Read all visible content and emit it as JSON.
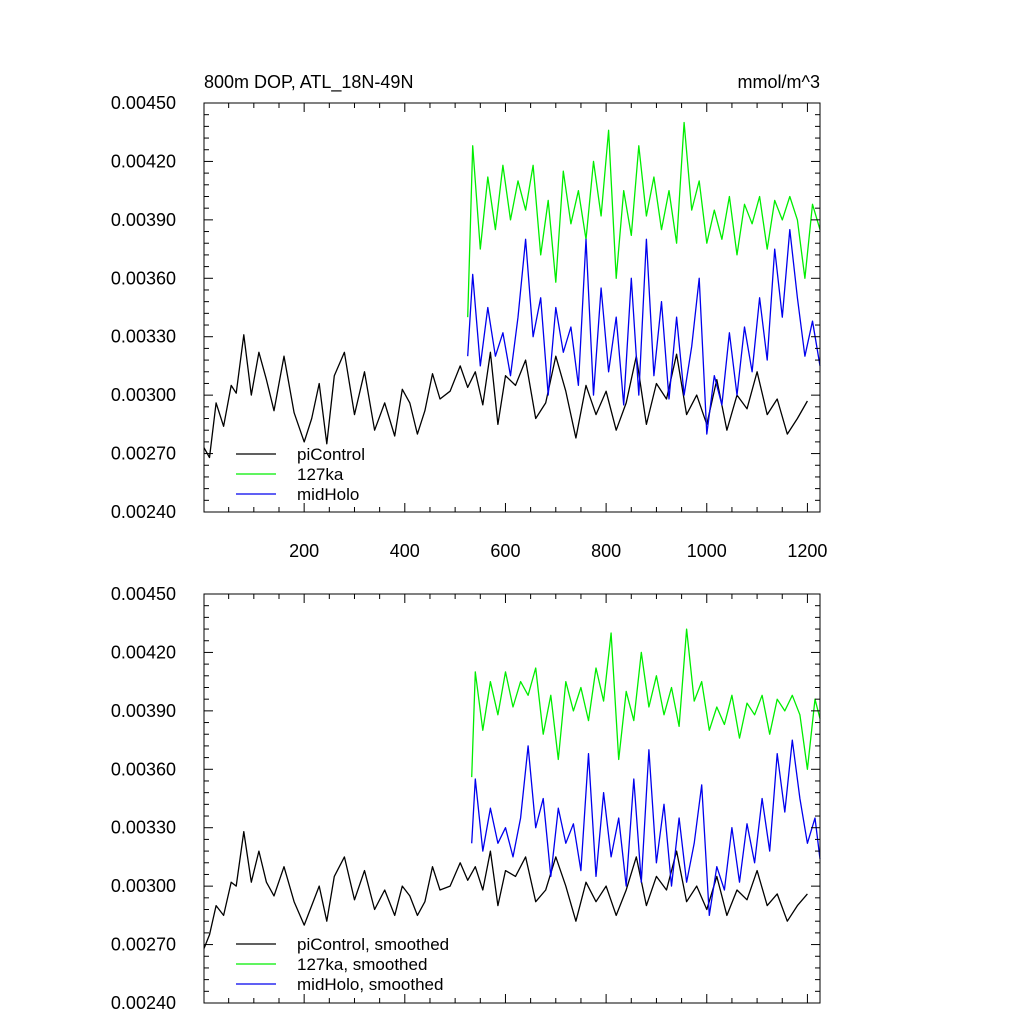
{
  "colors": {
    "piControl": "#000000",
    "127ka": "#00ee00",
    "midHolo": "#0000ee"
  },
  "chart_data": [
    {
      "type": "line",
      "title": "800m DOP, ATL_18N-49N",
      "units": "mmol/m^3",
      "xlabel": "",
      "ylabel": "",
      "xlim": [
        1,
        1225
      ],
      "ylim": [
        0.0024,
        0.0045
      ],
      "x_ticks": [
        200,
        400,
        600,
        800,
        1000,
        1200
      ],
      "x_tick_labels": [
        "200",
        "400",
        "600",
        "800",
        "1000",
        "1200"
      ],
      "y_ticks": [
        0.0024,
        0.0027,
        0.003,
        0.0033,
        0.0036,
        0.0039,
        0.0042,
        0.0045
      ],
      "y_tick_labels": [
        "0.00240",
        "0.00270",
        "0.00300",
        "0.00330",
        "0.00360",
        "0.00390",
        "0.00420",
        "0.00450"
      ],
      "grid": false,
      "legend_position": "bottom-left",
      "series": [
        {
          "name": "piControl",
          "color": "#000000",
          "x": [
            1,
            12,
            25,
            40,
            55,
            65,
            80,
            95,
            110,
            125,
            140,
            160,
            180,
            200,
            215,
            230,
            245,
            260,
            280,
            300,
            320,
            340,
            360,
            380,
            395,
            410,
            425,
            440,
            455,
            470,
            490,
            510,
            525,
            540,
            555,
            570,
            585,
            600,
            620,
            640,
            660,
            680,
            700,
            720,
            740,
            760,
            780,
            800,
            820,
            840,
            860,
            880,
            900,
            920,
            940,
            960,
            980,
            1000,
            1020,
            1040,
            1060,
            1080,
            1100,
            1120,
            1140,
            1160,
            1180,
            1200
          ],
          "y": [
            0.00273,
            0.00268,
            0.00296,
            0.00284,
            0.00305,
            0.00301,
            0.00331,
            0.003,
            0.00322,
            0.00308,
            0.00292,
            0.0032,
            0.00291,
            0.00276,
            0.00288,
            0.00306,
            0.00275,
            0.0031,
            0.00322,
            0.0029,
            0.00312,
            0.00282,
            0.00296,
            0.00279,
            0.00303,
            0.00296,
            0.0028,
            0.00292,
            0.00311,
            0.00298,
            0.00302,
            0.00315,
            0.00304,
            0.00312,
            0.00295,
            0.00322,
            0.00285,
            0.0031,
            0.00305,
            0.00318,
            0.00288,
            0.00296,
            0.0032,
            0.00302,
            0.00278,
            0.00305,
            0.0029,
            0.00302,
            0.00282,
            0.00296,
            0.0032,
            0.00285,
            0.00306,
            0.00298,
            0.00321,
            0.0029,
            0.003,
            0.00285,
            0.00308,
            0.00282,
            0.003,
            0.00293,
            0.00312,
            0.0029,
            0.00298,
            0.0028,
            0.00288,
            0.00297
          ]
        },
        {
          "name": "127ka",
          "color": "#00ee00",
          "x": [
            525,
            535,
            550,
            565,
            580,
            595,
            610,
            625,
            640,
            655,
            670,
            685,
            700,
            715,
            730,
            745,
            760,
            775,
            790,
            805,
            820,
            835,
            850,
            865,
            880,
            895,
            910,
            925,
            940,
            955,
            970,
            985,
            1000,
            1015,
            1030,
            1045,
            1060,
            1075,
            1090,
            1105,
            1120,
            1135,
            1150,
            1165,
            1180,
            1195,
            1210,
            1225
          ],
          "y": [
            0.0034,
            0.00428,
            0.00375,
            0.00412,
            0.00385,
            0.00418,
            0.0039,
            0.0041,
            0.00395,
            0.00418,
            0.00372,
            0.004,
            0.00358,
            0.00415,
            0.00388,
            0.00405,
            0.0038,
            0.0042,
            0.00392,
            0.00436,
            0.0036,
            0.00405,
            0.00382,
            0.00428,
            0.00392,
            0.00412,
            0.00385,
            0.00405,
            0.00378,
            0.0044,
            0.00395,
            0.0041,
            0.00378,
            0.00395,
            0.0038,
            0.00402,
            0.00372,
            0.00398,
            0.00388,
            0.00402,
            0.00375,
            0.004,
            0.0039,
            0.00402,
            0.0039,
            0.0036,
            0.00398,
            0.00385
          ]
        },
        {
          "name": "midHolo",
          "color": "#0000ee",
          "x": [
            525,
            535,
            550,
            565,
            580,
            595,
            610,
            625,
            640,
            655,
            670,
            685,
            700,
            715,
            730,
            745,
            760,
            775,
            790,
            805,
            820,
            835,
            850,
            865,
            880,
            895,
            910,
            925,
            940,
            955,
            970,
            985,
            1000,
            1015,
            1030,
            1045,
            1060,
            1075,
            1090,
            1105,
            1120,
            1135,
            1150,
            1165,
            1180,
            1195,
            1210,
            1225
          ],
          "y": [
            0.0032,
            0.00362,
            0.00315,
            0.00345,
            0.0032,
            0.00332,
            0.0031,
            0.0034,
            0.0038,
            0.0033,
            0.0035,
            0.003,
            0.00345,
            0.00322,
            0.00335,
            0.00305,
            0.0038,
            0.003,
            0.00355,
            0.00312,
            0.0034,
            0.00295,
            0.0036,
            0.003,
            0.0038,
            0.0031,
            0.00348,
            0.00298,
            0.0034,
            0.003,
            0.00325,
            0.0036,
            0.0028,
            0.0031,
            0.00295,
            0.00332,
            0.003,
            0.00335,
            0.00312,
            0.0035,
            0.00318,
            0.00375,
            0.0034,
            0.00385,
            0.0035,
            0.0032,
            0.00338,
            0.00315
          ]
        }
      ],
      "legend": [
        {
          "label": "piControl",
          "color": "#000000"
        },
        {
          "label": "127ka",
          "color": "#00ee00"
        },
        {
          "label": "midHolo",
          "color": "#0000ee"
        }
      ]
    },
    {
      "type": "line",
      "title": "",
      "units": "",
      "xlabel": "",
      "ylabel": "",
      "xlim": [
        1,
        1225
      ],
      "ylim": [
        0.0024,
        0.0045
      ],
      "x_ticks": [
        200,
        400,
        600,
        800,
        1000,
        1200
      ],
      "x_tick_labels": [],
      "y_ticks": [
        0.0024,
        0.0027,
        0.003,
        0.0033,
        0.0036,
        0.0039,
        0.0042,
        0.0045
      ],
      "y_tick_labels": [
        "0.00240",
        "0.00270",
        "0.00300",
        "0.00330",
        "0.00360",
        "0.00390",
        "0.00420",
        "0.00450"
      ],
      "grid": false,
      "legend_position": "bottom-left",
      "series": [
        {
          "name": "piControl, smoothed",
          "color": "#000000",
          "x": [
            1,
            12,
            25,
            40,
            55,
            65,
            80,
            95,
            110,
            125,
            140,
            160,
            180,
            200,
            215,
            230,
            245,
            260,
            280,
            300,
            320,
            340,
            360,
            380,
            395,
            410,
            425,
            440,
            455,
            470,
            490,
            510,
            525,
            540,
            555,
            570,
            585,
            600,
            620,
            640,
            660,
            680,
            700,
            720,
            740,
            760,
            780,
            800,
            820,
            840,
            860,
            880,
            900,
            920,
            940,
            960,
            980,
            1000,
            1020,
            1040,
            1060,
            1080,
            1100,
            1120,
            1140,
            1160,
            1180,
            1200
          ],
          "y": [
            0.00268,
            0.00275,
            0.0029,
            0.00285,
            0.00302,
            0.003,
            0.00328,
            0.00302,
            0.00318,
            0.00302,
            0.00295,
            0.0031,
            0.00292,
            0.0028,
            0.0029,
            0.003,
            0.00282,
            0.00305,
            0.00315,
            0.00293,
            0.00308,
            0.00288,
            0.00298,
            0.00285,
            0.003,
            0.00295,
            0.00285,
            0.00292,
            0.0031,
            0.00298,
            0.003,
            0.00312,
            0.00303,
            0.0031,
            0.00298,
            0.00318,
            0.0029,
            0.00308,
            0.00305,
            0.00315,
            0.00292,
            0.00298,
            0.00315,
            0.003,
            0.00282,
            0.00302,
            0.00292,
            0.003,
            0.00285,
            0.00298,
            0.00315,
            0.0029,
            0.00305,
            0.00298,
            0.00318,
            0.00292,
            0.003,
            0.00288,
            0.00305,
            0.00285,
            0.00298,
            0.00293,
            0.00308,
            0.0029,
            0.00296,
            0.00282,
            0.0029,
            0.00296
          ]
        },
        {
          "name": "127ka, smoothed",
          "color": "#00ee00",
          "x": [
            533,
            540,
            555,
            570,
            585,
            600,
            615,
            630,
            645,
            660,
            675,
            690,
            705,
            720,
            735,
            750,
            765,
            780,
            795,
            810,
            825,
            840,
            855,
            870,
            885,
            900,
            915,
            930,
            945,
            960,
            975,
            990,
            1005,
            1020,
            1035,
            1050,
            1065,
            1080,
            1095,
            1110,
            1125,
            1140,
            1155,
            1170,
            1185,
            1200,
            1215,
            1225
          ],
          "y": [
            0.00356,
            0.0041,
            0.0038,
            0.00405,
            0.00388,
            0.0041,
            0.00392,
            0.00405,
            0.00398,
            0.00412,
            0.00378,
            0.00398,
            0.00365,
            0.00405,
            0.0039,
            0.00402,
            0.00385,
            0.00412,
            0.00395,
            0.0043,
            0.00365,
            0.004,
            0.00385,
            0.0042,
            0.00392,
            0.00408,
            0.00388,
            0.00402,
            0.00382,
            0.00432,
            0.00395,
            0.00405,
            0.0038,
            0.00392,
            0.00383,
            0.00398,
            0.00376,
            0.00394,
            0.00388,
            0.00398,
            0.00378,
            0.00396,
            0.0039,
            0.00398,
            0.00388,
            0.0036,
            0.00396,
            0.00386
          ]
        },
        {
          "name": "midHolo, smoothed",
          "color": "#0000ee",
          "x": [
            533,
            540,
            555,
            570,
            585,
            600,
            615,
            630,
            645,
            660,
            675,
            690,
            705,
            720,
            735,
            750,
            765,
            780,
            795,
            810,
            825,
            840,
            855,
            870,
            885,
            900,
            915,
            930,
            945,
            960,
            975,
            990,
            1005,
            1020,
            1035,
            1050,
            1065,
            1080,
            1095,
            1110,
            1125,
            1140,
            1155,
            1170,
            1185,
            1200,
            1215,
            1225
          ],
          "y": [
            0.00322,
            0.00355,
            0.00318,
            0.0034,
            0.00322,
            0.0033,
            0.00315,
            0.00335,
            0.00372,
            0.0033,
            0.00345,
            0.00305,
            0.0034,
            0.00322,
            0.00332,
            0.00308,
            0.00368,
            0.00305,
            0.00348,
            0.00315,
            0.00335,
            0.003,
            0.00355,
            0.00302,
            0.0037,
            0.00312,
            0.00342,
            0.003,
            0.00335,
            0.00302,
            0.00322,
            0.00352,
            0.00285,
            0.0031,
            0.00298,
            0.0033,
            0.00302,
            0.00332,
            0.00312,
            0.00345,
            0.00318,
            0.00368,
            0.00338,
            0.00375,
            0.00345,
            0.00322,
            0.00335,
            0.00314
          ]
        }
      ],
      "legend": [
        {
          "label": "piControl, smoothed",
          "color": "#000000"
        },
        {
          "label": "127ka, smoothed",
          "color": "#00ee00"
        },
        {
          "label": "midHolo, smoothed",
          "color": "#0000ee"
        }
      ]
    }
  ]
}
